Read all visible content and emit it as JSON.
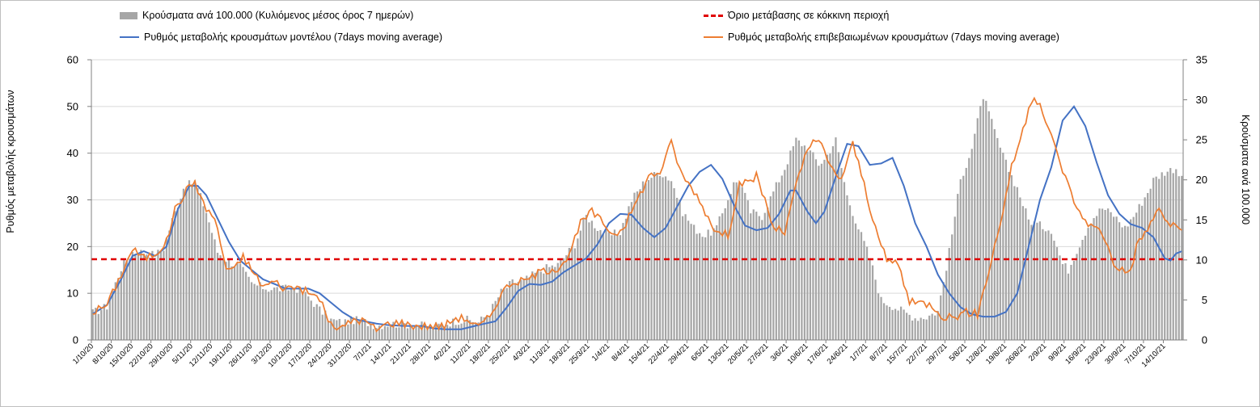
{
  "chart_data": {
    "type": "bar+line",
    "title": "",
    "legend": {
      "position": "top",
      "items": [
        {
          "name": "Κρούσματα ανά 100.000 (Κυλιόμενος μέσος όρος 7 ημερών)",
          "type": "bar",
          "color": "#a6a6a6"
        },
        {
          "name": "Όριο μετάβασης σε κόκκινη περιοχή",
          "type": "dashed-line",
          "color": "#e00000"
        },
        {
          "name": "Ρυθμός μεταβολής κρουσμάτων μοντέλου (7days moving average)",
          "type": "line",
          "color": "#4472c4"
        },
        {
          "name": "Ρυθμός μεταβολής επιβεβαιωμένων κρουσμάτων (7days moving average)",
          "type": "line",
          "color": "#ed7d31"
        }
      ]
    },
    "y_left": {
      "label": "Ρυθμός μεταβολής κρουσμάτων",
      "min": 0,
      "max": 60,
      "ticks": [
        "0",
        "10",
        "20",
        "30",
        "40",
        "50",
        "60"
      ]
    },
    "y_right": {
      "label": "Κρούσματα ανά 100.000",
      "min": 0,
      "max": 35,
      "ticks": [
        "0",
        "5",
        "10",
        "15",
        "20",
        "25",
        "30",
        "35"
      ]
    },
    "threshold": {
      "value": 17.3,
      "axis": "left"
    },
    "x": {
      "start": "1/10/20",
      "days": 385,
      "tick_every_days": 7,
      "tick_labels": [
        "1/10/20",
        "8/10/20",
        "15/10/20",
        "22/10/20",
        "29/10/20",
        "5/11/20",
        "12/11/20",
        "19/11/20",
        "26/11/20",
        "3/12/20",
        "10/12/20",
        "17/12/20",
        "24/12/20",
        "31/12/20",
        "7/1/21",
        "14/1/21",
        "21/1/21",
        "28/1/21",
        "4/2/21",
        "11/2/21",
        "18/2/21",
        "25/2/21",
        "4/3/21",
        "11/3/21",
        "18/3/21",
        "25/3/21",
        "1/4/21",
        "8/4/21",
        "15/4/21",
        "22/4/21",
        "29/4/21",
        "6/5/21",
        "13/5/21",
        "20/5/21",
        "27/5/21",
        "3/6/21",
        "10/6/21",
        "17/6/21",
        "24/6/21",
        "1/7/21",
        "8/7/21",
        "15/7/21",
        "22/7/21",
        "29/7/21",
        "5/8/21",
        "12/8/21",
        "19/8/21",
        "26/8/21",
        "2/9/21",
        "9/9/21",
        "16/9/21",
        "23/9/21",
        "30/9/21",
        "7/10/21",
        "14/10/21"
      ]
    },
    "series_keypoints_note": "Values estimated from gridlines; [day_index, value] pairs, interpolated daily",
    "series": [
      {
        "name": "Κρούσματα ανά 100.000 (Κυλιόμενος μέσος όρος 7 ημερών)",
        "axis": "right",
        "type": "bar",
        "keypoints": [
          [
            0,
            3.4
          ],
          [
            5,
            4.2
          ],
          [
            10,
            9
          ],
          [
            14,
            11
          ],
          [
            18,
            11
          ],
          [
            22,
            10.6
          ],
          [
            25,
            11.5
          ],
          [
            28,
            15
          ],
          [
            32,
            19
          ],
          [
            36,
            19.8
          ],
          [
            40,
            16
          ],
          [
            44,
            11
          ],
          [
            48,
            9.8
          ],
          [
            52,
            9.2
          ],
          [
            56,
            7
          ],
          [
            62,
            6.4
          ],
          [
            68,
            6.4
          ],
          [
            72,
            6.4
          ],
          [
            76,
            5.4
          ],
          [
            80,
            3.8
          ],
          [
            84,
            2.5
          ],
          [
            88,
            2.2
          ],
          [
            92,
            2.5
          ],
          [
            96,
            2.3
          ],
          [
            100,
            1.8
          ],
          [
            104,
            2
          ],
          [
            110,
            2
          ],
          [
            116,
            1.8
          ],
          [
            120,
            1.7
          ],
          [
            124,
            2
          ],
          [
            128,
            2.4
          ],
          [
            132,
            2.5
          ],
          [
            136,
            2.2
          ],
          [
            140,
            3.5
          ],
          [
            144,
            6
          ],
          [
            148,
            7.2
          ],
          [
            152,
            7.4
          ],
          [
            156,
            8.3
          ],
          [
            160,
            9
          ],
          [
            164,
            9.4
          ],
          [
            170,
            12
          ],
          [
            174,
            15.5
          ],
          [
            178,
            14
          ],
          [
            182,
            13
          ],
          [
            186,
            13.5
          ],
          [
            190,
            17.5
          ],
          [
            195,
            20
          ],
          [
            200,
            21
          ],
          [
            204,
            20
          ],
          [
            208,
            16
          ],
          [
            212,
            14
          ],
          [
            216,
            13
          ],
          [
            220,
            14
          ],
          [
            226,
            19.5
          ],
          [
            228,
            20
          ],
          [
            232,
            16
          ],
          [
            236,
            15.5
          ],
          [
            240,
            18.5
          ],
          [
            244,
            21.5
          ],
          [
            248,
            25
          ],
          [
            252,
            24
          ],
          [
            256,
            22
          ],
          [
            258,
            22.5
          ],
          [
            262,
            25
          ],
          [
            266,
            18
          ],
          [
            270,
            14
          ],
          [
            274,
            10.3
          ],
          [
            278,
            5
          ],
          [
            282,
            4.3
          ],
          [
            286,
            3.5
          ],
          [
            290,
            2.8
          ],
          [
            294,
            2.9
          ],
          [
            298,
            3.6
          ],
          [
            302,
            11
          ],
          [
            306,
            20
          ],
          [
            310,
            24
          ],
          [
            314,
            30.5
          ],
          [
            318,
            26
          ],
          [
            322,
            22
          ],
          [
            326,
            19
          ],
          [
            330,
            15
          ],
          [
            334,
            14.3
          ],
          [
            338,
            13.8
          ],
          [
            342,
            9.5
          ],
          [
            344,
            8.8
          ],
          [
            348,
            12
          ],
          [
            352,
            15
          ],
          [
            356,
            16.5
          ],
          [
            360,
            15.6
          ],
          [
            364,
            14
          ],
          [
            368,
            16
          ],
          [
            372,
            18.5
          ],
          [
            374,
            20
          ],
          [
            378,
            21
          ],
          [
            382,
            21.5
          ],
          [
            384,
            20
          ]
        ]
      },
      {
        "name": "Ρυθμός μεταβολής κρουσμάτων μοντέλου (7days moving average)",
        "axis": "left",
        "type": "line",
        "keypoints": [
          [
            0,
            5.6
          ],
          [
            5,
            7.5
          ],
          [
            10,
            13
          ],
          [
            14,
            18
          ],
          [
            18,
            19
          ],
          [
            22,
            18
          ],
          [
            26,
            20
          ],
          [
            30,
            28
          ],
          [
            34,
            33
          ],
          [
            37,
            33
          ],
          [
            40,
            31
          ],
          [
            44,
            26
          ],
          [
            48,
            21
          ],
          [
            52,
            17
          ],
          [
            56,
            15
          ],
          [
            60,
            13
          ],
          [
            64,
            12
          ],
          [
            68,
            11
          ],
          [
            72,
            11
          ],
          [
            76,
            11
          ],
          [
            80,
            10
          ],
          [
            84,
            8
          ],
          [
            88,
            6
          ],
          [
            92,
            4.5
          ],
          [
            96,
            4
          ],
          [
            100,
            3.5
          ],
          [
            104,
            3.2
          ],
          [
            110,
            3
          ],
          [
            116,
            3
          ],
          [
            120,
            2.5
          ],
          [
            124,
            2.3
          ],
          [
            130,
            2.3
          ],
          [
            136,
            3.2
          ],
          [
            142,
            4
          ],
          [
            146,
            7
          ],
          [
            150,
            10.5
          ],
          [
            154,
            12
          ],
          [
            158,
            11.8
          ],
          [
            162,
            12.5
          ],
          [
            166,
            14.5
          ],
          [
            170,
            16
          ],
          [
            174,
            17.5
          ],
          [
            178,
            20.5
          ],
          [
            182,
            25
          ],
          [
            186,
            27
          ],
          [
            190,
            26.8
          ],
          [
            194,
            24
          ],
          [
            198,
            22
          ],
          [
            202,
            24
          ],
          [
            206,
            28.5
          ],
          [
            210,
            33
          ],
          [
            214,
            36
          ],
          [
            218,
            37.5
          ],
          [
            222,
            34.5
          ],
          [
            226,
            29
          ],
          [
            230,
            24.5
          ],
          [
            234,
            23.5
          ],
          [
            238,
            24
          ],
          [
            242,
            27
          ],
          [
            246,
            32
          ],
          [
            248,
            32
          ],
          [
            252,
            27.5
          ],
          [
            255,
            25
          ],
          [
            258,
            27.5
          ],
          [
            262,
            35
          ],
          [
            266,
            42
          ],
          [
            270,
            41.5
          ],
          [
            274,
            37.5
          ],
          [
            278,
            37.8
          ],
          [
            282,
            39
          ],
          [
            286,
            33
          ],
          [
            290,
            25
          ],
          [
            294,
            20
          ],
          [
            298,
            14
          ],
          [
            302,
            10
          ],
          [
            306,
            7
          ],
          [
            310,
            5.5
          ],
          [
            314,
            5
          ],
          [
            318,
            5
          ],
          [
            322,
            6
          ],
          [
            326,
            10
          ],
          [
            330,
            20
          ],
          [
            334,
            30
          ],
          [
            338,
            37
          ],
          [
            342,
            47
          ],
          [
            346,
            50
          ],
          [
            350,
            45.8
          ],
          [
            354,
            38
          ],
          [
            358,
            31
          ],
          [
            362,
            27
          ],
          [
            366,
            24.8
          ],
          [
            370,
            24
          ],
          [
            374,
            22
          ],
          [
            378,
            17.5
          ],
          [
            380,
            17
          ],
          [
            382,
            18.5
          ],
          [
            384,
            19
          ]
        ]
      },
      {
        "name": "Ρυθμός μεταβολής επιβεβαιωμένων κρουσμάτων (7days moving average)",
        "axis": "left",
        "type": "line",
        "keypoints": [
          [
            0,
            6
          ],
          [
            5,
            7.5
          ],
          [
            10,
            14
          ],
          [
            14,
            19.5
          ],
          [
            18,
            17.5
          ],
          [
            22,
            18.5
          ],
          [
            26,
            21
          ],
          [
            29,
            28
          ],
          [
            33,
            32
          ],
          [
            36,
            34
          ],
          [
            39,
            29
          ],
          [
            43,
            26
          ],
          [
            47,
            15.5
          ],
          [
            50,
            15
          ],
          [
            53,
            18
          ],
          [
            56,
            15
          ],
          [
            60,
            11.5
          ],
          [
            64,
            12.5
          ],
          [
            68,
            11
          ],
          [
            72,
            11.5
          ],
          [
            76,
            10
          ],
          [
            80,
            9
          ],
          [
            84,
            3
          ],
          [
            88,
            2.5
          ],
          [
            92,
            4.5
          ],
          [
            96,
            4
          ],
          [
            100,
            2.2
          ],
          [
            104,
            3.5
          ],
          [
            108,
            3.8
          ],
          [
            112,
            3.2
          ],
          [
            116,
            3
          ],
          [
            120,
            3
          ],
          [
            124,
            3
          ],
          [
            128,
            4.8
          ],
          [
            132,
            4.5
          ],
          [
            136,
            2.7
          ],
          [
            140,
            5
          ],
          [
            144,
            10
          ],
          [
            148,
            12.5
          ],
          [
            152,
            12.5
          ],
          [
            156,
            14
          ],
          [
            160,
            15
          ],
          [
            164,
            15.5
          ],
          [
            168,
            18
          ],
          [
            172,
            25
          ],
          [
            176,
            27.5
          ],
          [
            180,
            25
          ],
          [
            184,
            22.5
          ],
          [
            188,
            25
          ],
          [
            192,
            30
          ],
          [
            196,
            35
          ],
          [
            200,
            36
          ],
          [
            204,
            42.2
          ],
          [
            208,
            35
          ],
          [
            212,
            32
          ],
          [
            216,
            27.5
          ],
          [
            220,
            23
          ],
          [
            224,
            22.5
          ],
          [
            228,
            33.5
          ],
          [
            232,
            33.5
          ],
          [
            234,
            35.5
          ],
          [
            238,
            28
          ],
          [
            240,
            24
          ],
          [
            244,
            23
          ],
          [
            248,
            33
          ],
          [
            252,
            41
          ],
          [
            256,
            43
          ],
          [
            260,
            37
          ],
          [
            264,
            34.5
          ],
          [
            268,
            42
          ],
          [
            272,
            33.5
          ],
          [
            276,
            23.5
          ],
          [
            280,
            17
          ],
          [
            284,
            16.5
          ],
          [
            288,
            8
          ],
          [
            292,
            8
          ],
          [
            296,
            7.5
          ],
          [
            300,
            5
          ],
          [
            304,
            5
          ],
          [
            308,
            6
          ],
          [
            312,
            5.5
          ],
          [
            316,
            15
          ],
          [
            320,
            25
          ],
          [
            324,
            37
          ],
          [
            328,
            45
          ],
          [
            332,
            52.5
          ],
          [
            336,
            47
          ],
          [
            340,
            40
          ],
          [
            344,
            33
          ],
          [
            348,
            27
          ],
          [
            352,
            24.5
          ],
          [
            356,
            23
          ],
          [
            360,
            16.5
          ],
          [
            364,
            14.5
          ],
          [
            366,
            15
          ],
          [
            368,
            20
          ],
          [
            372,
            24
          ],
          [
            376,
            28
          ],
          [
            380,
            24.5
          ],
          [
            384,
            24
          ]
        ]
      }
    ]
  }
}
